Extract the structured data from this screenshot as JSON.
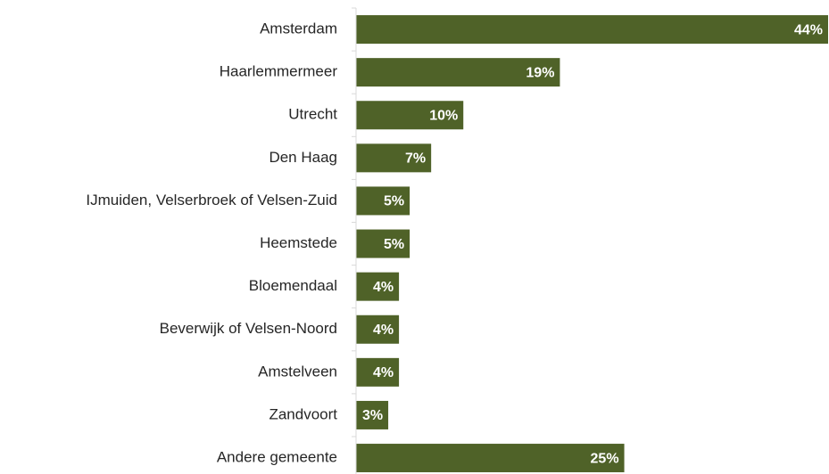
{
  "chart_data": {
    "type": "barh",
    "categories": [
      "Amsterdam",
      "Haarlemmermeer",
      "Utrecht",
      "Den Haag",
      "IJmuiden, Velserbroek of Velsen-Zuid",
      "Heemstede",
      "Bloemendaal",
      "Beverwijk of Velsen-Noord",
      "Amstelveen",
      "Zandvoort",
      "Andere gemeente"
    ],
    "values": [
      44,
      19,
      10,
      7,
      5,
      5,
      4,
      4,
      4,
      3,
      25
    ],
    "value_labels": [
      "44%",
      "19%",
      "10%",
      "7%",
      "5%",
      "5%",
      "4%",
      "4%",
      "4%",
      "3%",
      "25%"
    ],
    "color": "#4f6228",
    "xlim": [
      0,
      44
    ]
  }
}
